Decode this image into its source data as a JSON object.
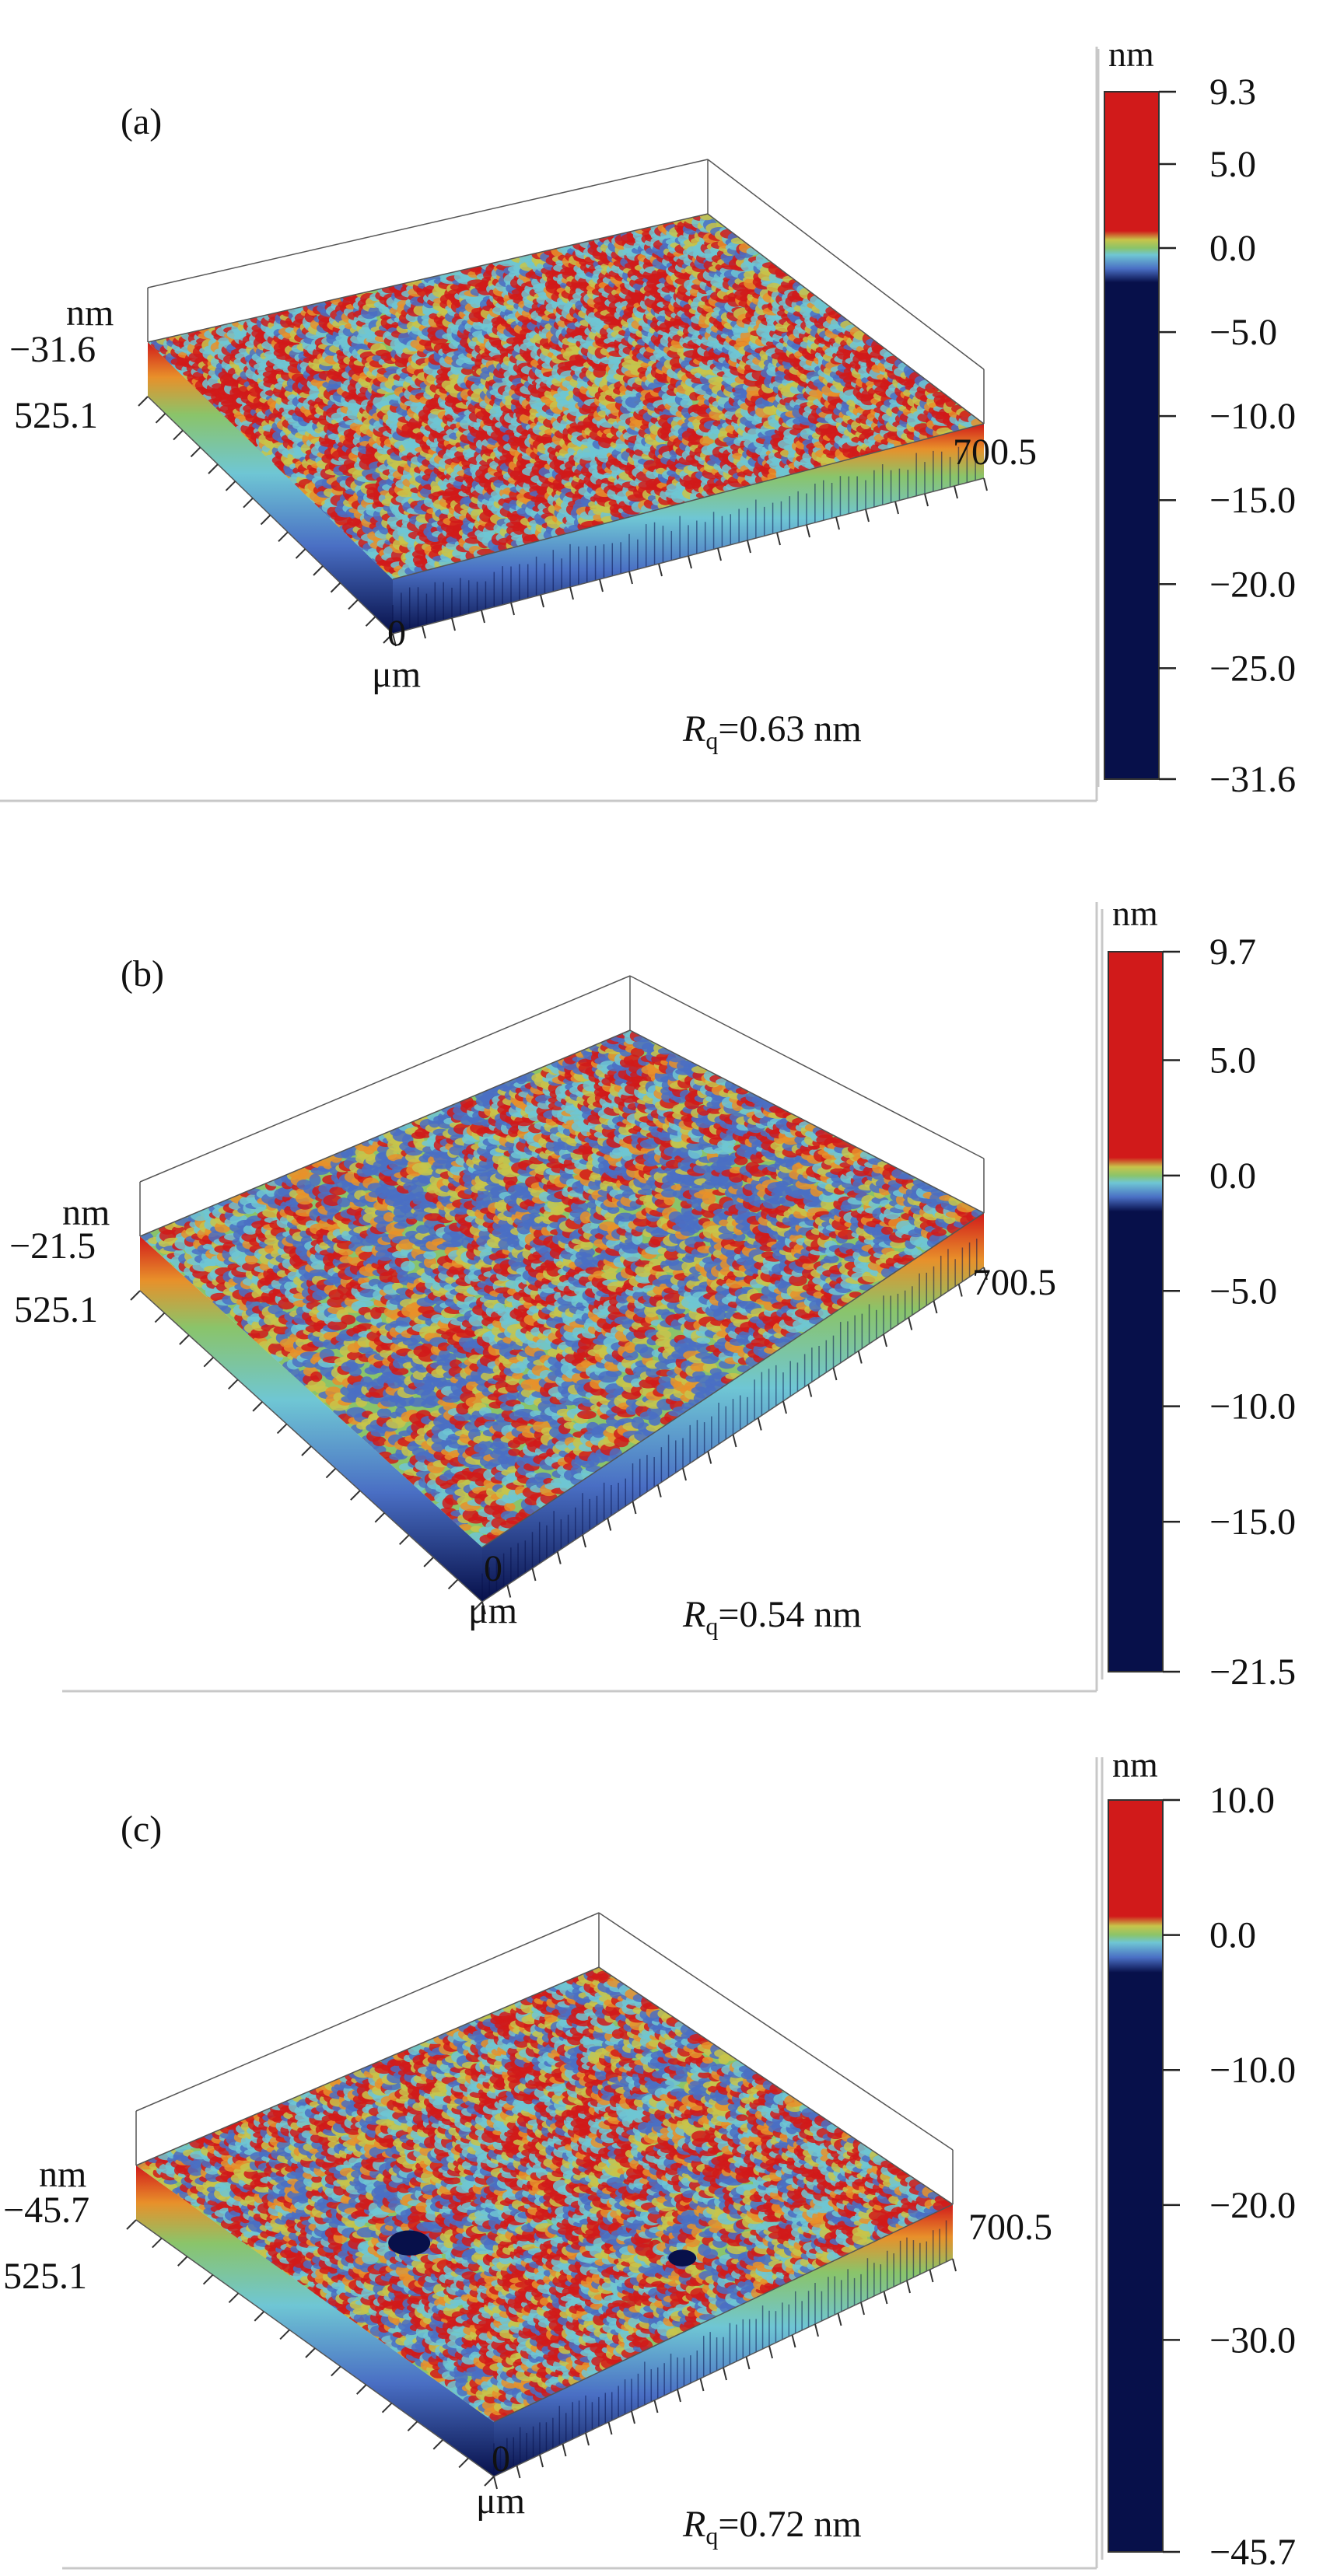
{
  "figure": {
    "panels": [
      {
        "label": "(a)",
        "z_unit": "nm",
        "z_min_label": "−31.6",
        "y_extent_label": "525.1",
        "origin_label": "0",
        "xy_unit": "μm",
        "x_extent_label": "700.5",
        "rq_symbol": "R",
        "rq_sub": "q",
        "rq_value": "=0.63 nm",
        "colorbar": {
          "unit": "nm",
          "min": -31.6,
          "max": 9.3,
          "zero": 0.0,
          "tick_values": [
            9.3,
            5.0,
            0.0,
            -5.0,
            -10.0,
            -15.0,
            -20.0,
            -25.0,
            -31.6
          ],
          "tick_labels": [
            "9.3",
            "5.0",
            "0.0",
            "−5.0",
            "−10.0",
            "−15.0",
            "−20.0",
            "−25.0",
            "−31.6"
          ]
        },
        "surface": {
          "seed": 11,
          "red_bias": 0.3,
          "blue_bias": 0.12,
          "pits": []
        }
      },
      {
        "label": "(b)",
        "z_unit": "nm",
        "z_min_label": "−21.5",
        "y_extent_label": "525.1",
        "origin_label": "0",
        "xy_unit": "μm",
        "x_extent_label": "700.5",
        "rq_symbol": "R",
        "rq_sub": "q",
        "rq_value": "=0.54 nm",
        "colorbar": {
          "unit": "nm",
          "min": -21.5,
          "max": 9.7,
          "zero": 0.0,
          "tick_values": [
            9.7,
            5.0,
            0.0,
            -5.0,
            -10.0,
            -15.0,
            -21.5
          ],
          "tick_labels": [
            "9.7",
            "5.0",
            "0.0",
            "−5.0",
            "−10.0",
            "−15.0",
            "−21.5"
          ]
        },
        "surface": {
          "seed": 23,
          "red_bias": 0.18,
          "blue_bias": 0.3,
          "pits": []
        }
      },
      {
        "label": "(c)",
        "z_unit": "nm",
        "z_min_label": "−45.7",
        "y_extent_label": "525.1",
        "origin_label": "0",
        "xy_unit": "μm",
        "x_extent_label": "700.5",
        "rq_symbol": "R",
        "rq_sub": "q",
        "rq_value": "=0.72 nm",
        "colorbar": {
          "unit": "nm",
          "min": -45.7,
          "max": 10.0,
          "zero": 0.0,
          "tick_values": [
            10.0,
            0.0,
            -10.0,
            -20.0,
            -30.0,
            -45.7
          ],
          "tick_labels": [
            "10.0",
            "0.0",
            "−10.0",
            "−20.0",
            "−30.0",
            "−45.7"
          ]
        },
        "surface": {
          "seed": 37,
          "red_bias": 0.26,
          "blue_bias": 0.2,
          "pits": [
            [
              0.22,
              0.52,
              0.045
            ],
            [
              0.55,
              0.18,
              0.03
            ]
          ]
        }
      }
    ],
    "colors": {
      "red": "#d11a1a",
      "orange": "#e8902a",
      "yellow": "#c8c44a",
      "green": "#8ac46a",
      "cyan": "#6fc6d4",
      "blue": "#4a6fc4",
      "navy": "#07104a",
      "frame": "#c8c8c8"
    }
  }
}
